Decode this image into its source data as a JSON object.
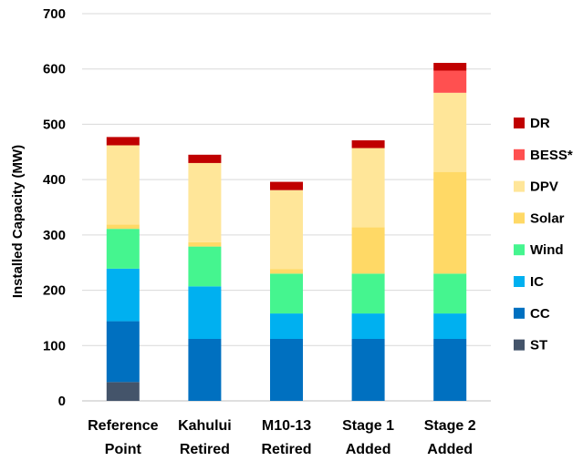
{
  "chart_data": {
    "type": "bar",
    "stacked": true,
    "ylabel": "Installed Capacity (MW)",
    "ylim": [
      0,
      700
    ],
    "yticks": [
      0,
      100,
      200,
      300,
      400,
      500,
      600,
      700
    ],
    "grid": true,
    "legend_position": "right",
    "categories": [
      [
        "Reference",
        "Point"
      ],
      [
        "Kahului",
        "Retired"
      ],
      [
        "M10-13",
        "Retired"
      ],
      [
        "Stage 1",
        "Added"
      ],
      [
        "Stage 2",
        "Added"
      ]
    ],
    "series": [
      {
        "name": "ST",
        "color": "#44546A",
        "values": [
          34,
          0,
          0,
          0,
          0
        ]
      },
      {
        "name": "CC",
        "color": "#0070C0",
        "values": [
          110,
          112,
          112,
          112,
          112
        ]
      },
      {
        "name": "IC",
        "color": "#00B0F0",
        "values": [
          95,
          95,
          46,
          46,
          46
        ]
      },
      {
        "name": "Wind",
        "color": "#45F58F",
        "values": [
          72,
          72,
          72,
          72,
          72
        ]
      },
      {
        "name": "Solar",
        "color": "#FFD966",
        "values": [
          8,
          8,
          8,
          84,
          184
        ]
      },
      {
        "name": "DPV",
        "color": "#FFE699",
        "values": [
          143,
          143,
          143,
          143,
          143
        ]
      },
      {
        "name": "BESS*",
        "color": "#FF5050",
        "values": [
          0,
          0,
          0,
          0,
          40
        ]
      },
      {
        "name": "DR",
        "color": "#C00000",
        "values": [
          15,
          15,
          15,
          14,
          14
        ]
      }
    ]
  }
}
